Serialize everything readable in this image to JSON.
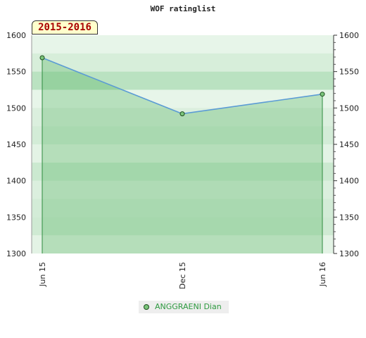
{
  "chart_data": {
    "type": "area",
    "title": "WOF ratinglist",
    "period_label": "2015-2016",
    "categories": [
      "Jun 15",
      "Dec 15",
      "Jun 16"
    ],
    "series": [
      {
        "name": "ANGGRAENI Dian",
        "values": [
          1569,
          1492,
          1519
        ]
      }
    ],
    "ylim": [
      1300,
      1600
    ],
    "yticks": [
      1300,
      1350,
      1400,
      1450,
      1500,
      1550,
      1600
    ],
    "legend_position": "bottom",
    "grid": true
  },
  "colors": {
    "line": "#5b9bd5",
    "area_fill": "#3ea84a",
    "bands": "#6cc07a",
    "marker": "#7bc57b",
    "marker_stroke": "#1e4d1e",
    "drop_line": "#2e8b3e"
  }
}
